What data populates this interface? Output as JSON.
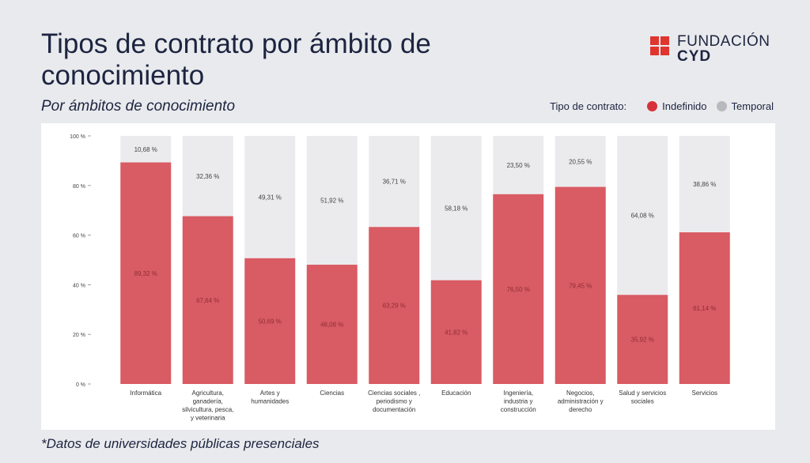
{
  "header": {
    "title": "Tipos de contrato por ámbito de conocimiento",
    "subtitle": "Por ámbitos de conocimiento"
  },
  "logo": {
    "line1": "FUNDACIÓN",
    "line2": "CYD",
    "color": "#e0342f"
  },
  "legend": {
    "title": "Tipo de contrato:",
    "items": [
      {
        "label": "Indefinido",
        "color": "#d6313a"
      },
      {
        "label": "Temporal",
        "color": "#b8b9bd"
      }
    ]
  },
  "footnote": "*Datos de universidades públicas presenciales",
  "chart_data": {
    "type": "bar",
    "stacked": true,
    "categories": [
      [
        "Informática"
      ],
      [
        "Agricultura,",
        "ganadería,",
        "silvicultura, pesca,",
        "y veterinaria"
      ],
      [
        "Artes y",
        "humanidades"
      ],
      [
        "Ciencias"
      ],
      [
        "Ciencias sociales ,",
        "periodismo y",
        "documentación"
      ],
      [
        "Educación"
      ],
      [
        "Ingeniería,",
        "industria y",
        "construcción"
      ],
      [
        "Negocios,",
        "administración y",
        "derecho"
      ],
      [
        "Salud y servicios",
        "sociales"
      ],
      [
        "Servicios"
      ]
    ],
    "series": [
      {
        "name": "Indefinido",
        "color": "#d95b63",
        "values": [
          89.32,
          67.64,
          50.69,
          48.08,
          63.29,
          41.82,
          76.5,
          79.45,
          35.92,
          61.14
        ],
        "labels": [
          "89,32 %",
          "67,64 %",
          "50,69 %",
          "48,08 %",
          "63,29 %",
          "41,82 %",
          "76,50 %",
          "79,45 %",
          "35,92 %",
          "61,14 %"
        ]
      },
      {
        "name": "Temporal",
        "color": "#ebebee",
        "values": [
          10.68,
          32.36,
          49.31,
          51.92,
          36.71,
          58.18,
          23.5,
          20.55,
          64.08,
          38.86
        ],
        "labels": [
          "10,68 %",
          "32,36 %",
          "49,31 %",
          "51,92 %",
          "36,71 %",
          "58,18 %",
          "23,50 %",
          "20,55 %",
          "64,08 %",
          "38,86 %"
        ]
      }
    ],
    "ylim": [
      0,
      100
    ],
    "yticks": [
      0,
      20,
      40,
      60,
      80,
      100
    ],
    "ytick_labels": [
      "0 %",
      "20 %",
      "40 %",
      "60 %",
      "80 %",
      "100 %"
    ],
    "grid": false,
    "legend_position": "top-right"
  }
}
